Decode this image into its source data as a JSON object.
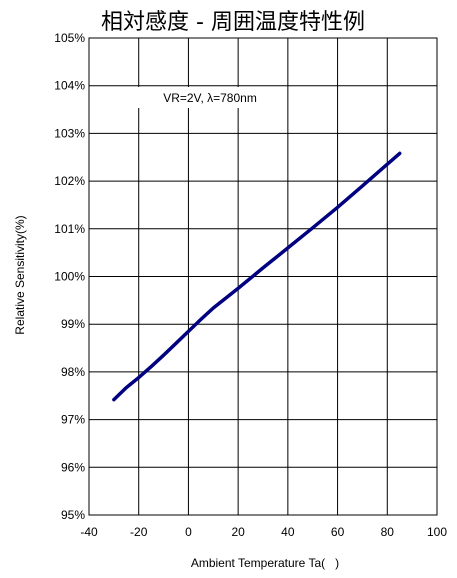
{
  "chart_data": {
    "type": "line",
    "title": "相対感度 - 周囲温度特性例",
    "xlabel": "Ambient Temperature Ta(   )",
    "ylabel": "Relative Sensitivity(%)",
    "annotation": "VR=2V, λ=780nm",
    "xlim": [
      -40,
      100
    ],
    "ylim": [
      95,
      105
    ],
    "x_ticks": [
      -40,
      -20,
      0,
      20,
      40,
      60,
      80,
      100
    ],
    "x_tick_labels": [
      "-40",
      "-20",
      "0",
      "20",
      "40",
      "60",
      "80",
      "100"
    ],
    "y_ticks": [
      95,
      96,
      97,
      98,
      99,
      100,
      101,
      102,
      103,
      104,
      105
    ],
    "y_tick_labels": [
      "95%",
      "96%",
      "97%",
      "98%",
      "99%",
      "100%",
      "101%",
      "102%",
      "103%",
      "104%",
      "105%"
    ],
    "grid": true,
    "series": [
      {
        "color": "#000080",
        "x": [
          -30,
          -25,
          -20,
          -15,
          -10,
          -5,
          0,
          5,
          10,
          20,
          30,
          40,
          50,
          60,
          70,
          85
        ],
        "y": [
          97.42,
          97.67,
          97.88,
          98.11,
          98.35,
          98.6,
          98.85,
          99.1,
          99.34,
          99.75,
          100.18,
          100.6,
          101.02,
          101.45,
          101.9,
          102.58
        ]
      }
    ]
  }
}
